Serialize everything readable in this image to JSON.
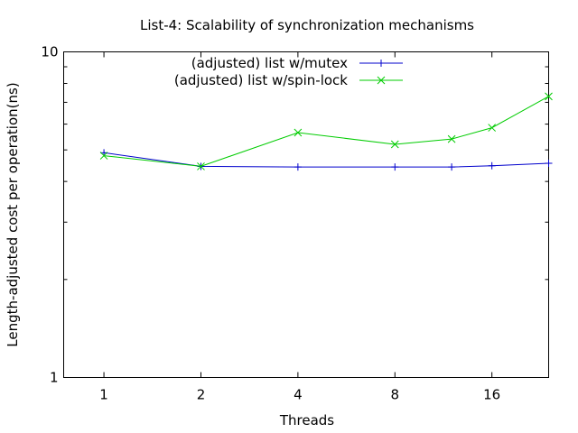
{
  "chart_data": {
    "type": "line",
    "title": "List-4: Scalability of synchronization mechanisms",
    "xlabel": "Threads",
    "ylabel": "Length-adjusted cost per operation(ns)",
    "x_scale": "log2",
    "y_scale": "log10",
    "xlim": [
      0.75,
      24
    ],
    "ylim": [
      1,
      10
    ],
    "x_ticks": [
      1,
      2,
      4,
      8,
      16
    ],
    "x_tick_labels": [
      "1",
      "2",
      "4",
      "8",
      "16"
    ],
    "y_ticks": [
      1,
      10
    ],
    "y_tick_labels": [
      "1",
      "10"
    ],
    "grid": false,
    "legend_position": "top-center",
    "series": [
      {
        "name": "(adjusted) list w/mutex",
        "color": "#0000cc",
        "marker": "plus",
        "x": [
          1,
          2,
          4,
          8,
          12,
          16,
          24
        ],
        "y": [
          4.9,
          4.45,
          4.43,
          4.43,
          4.43,
          4.47,
          4.55
        ]
      },
      {
        "name": "(adjusted) list w/spin-lock",
        "color": "#00cc00",
        "marker": "cross",
        "x": [
          1,
          2,
          4,
          8,
          12,
          16,
          24
        ],
        "y": [
          4.8,
          4.45,
          5.65,
          5.2,
          5.4,
          5.85,
          7.3
        ]
      }
    ]
  }
}
